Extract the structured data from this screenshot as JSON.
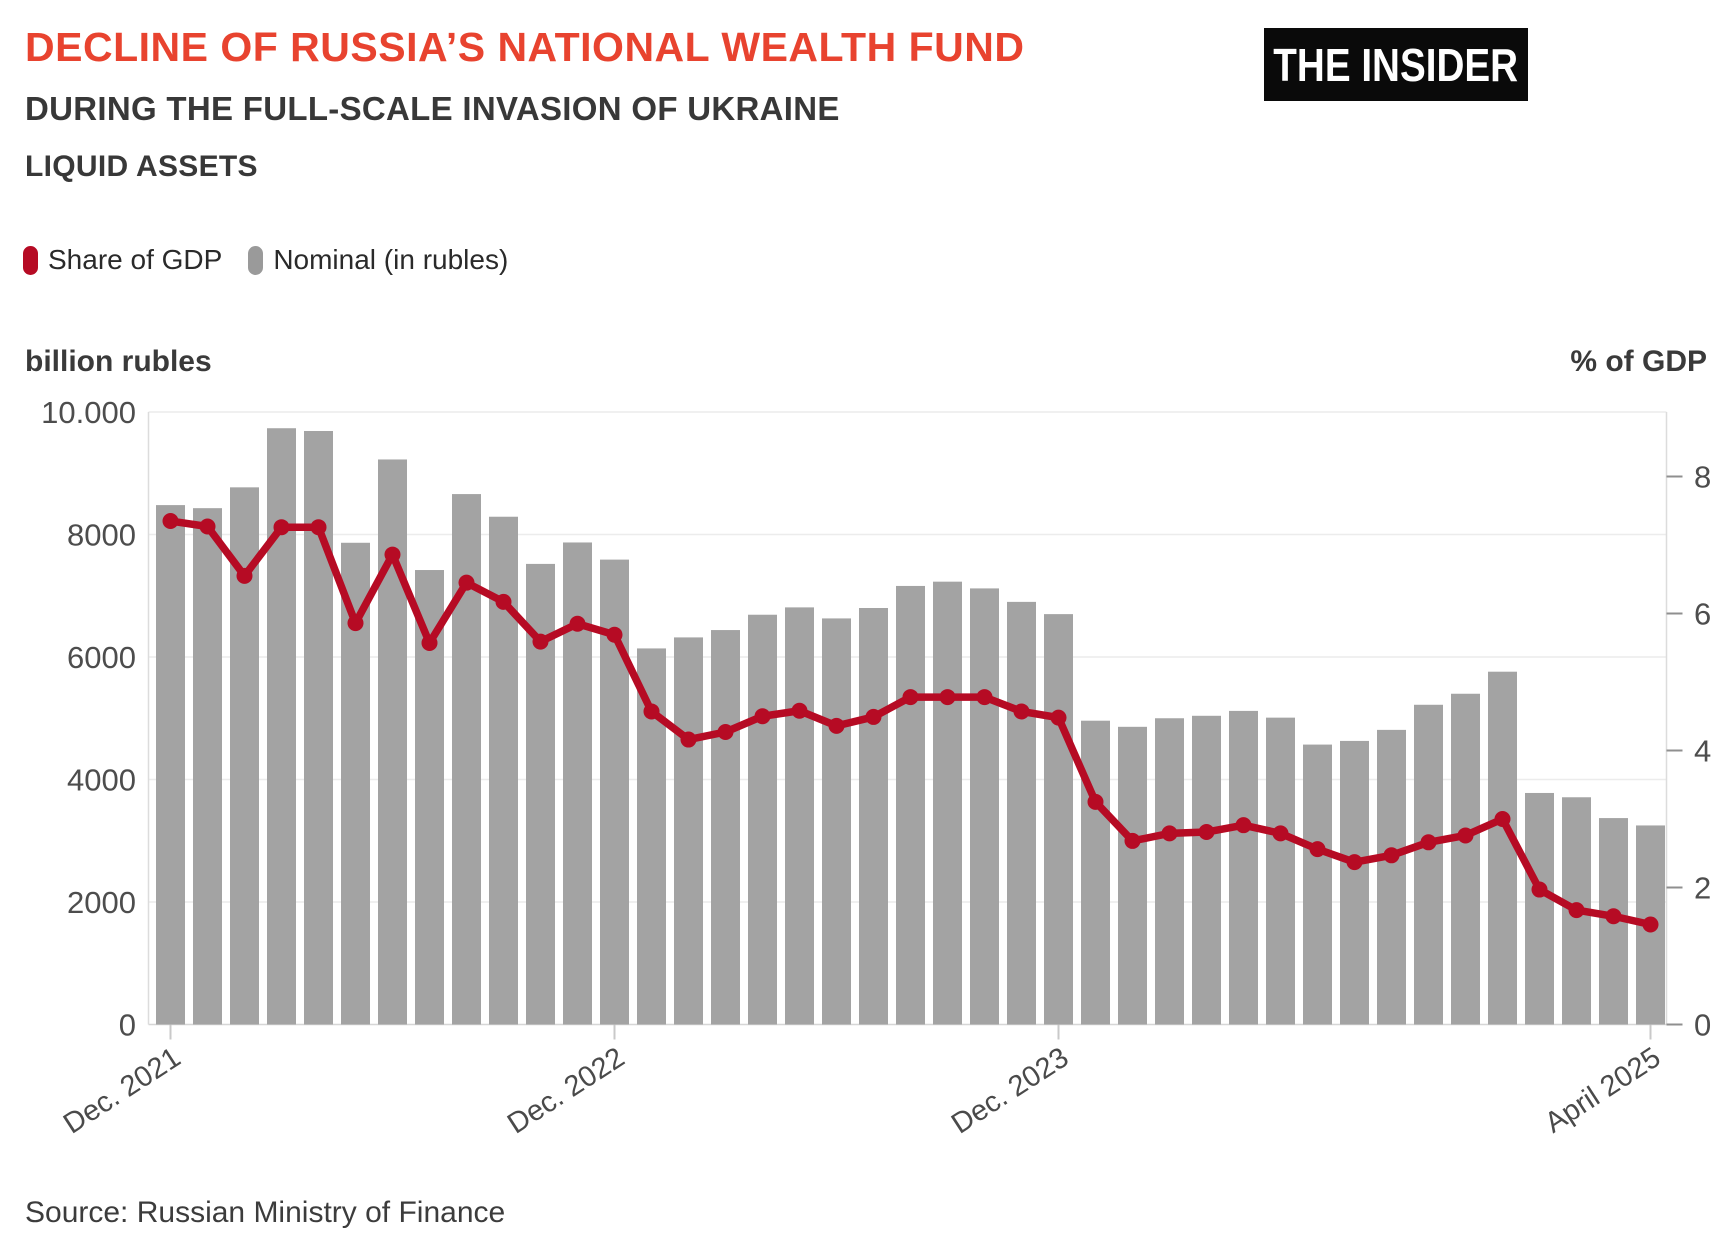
{
  "header": {
    "title": "DECLINE OF RUSSIA’S NATIONAL WEALTH FUND",
    "subtitle": "DURING THE FULL-SCALE INVASION OF UKRAINE",
    "subtitle2": "LIQUID ASSETS",
    "logo": "THE INSIDER"
  },
  "legend": [
    {
      "label": "Share of GDP",
      "color": "#b60b24"
    },
    {
      "label": "Nominal (in rubles)",
      "color": "#9a9a9a"
    }
  ],
  "axes": {
    "left_title": "billion rubles",
    "right_title": "% of GDP",
    "left_ticks": [
      {
        "label": "10.000",
        "value": 10000
      },
      {
        "label": "8000",
        "value": 8000
      },
      {
        "label": "6000",
        "value": 6000
      },
      {
        "label": "4000",
        "value": 4000
      },
      {
        "label": "2000",
        "value": 2000
      },
      {
        "label": "0",
        "value": 0
      }
    ],
    "right_ticks": [
      {
        "label": "8",
        "value": 8
      },
      {
        "label": "6",
        "value": 6
      },
      {
        "label": "4",
        "value": 4
      },
      {
        "label": "2",
        "value": 2
      },
      {
        "label": "0",
        "value": 0
      }
    ],
    "x_ticks": [
      {
        "label": "Dec. 2021",
        "index": 0
      },
      {
        "label": "Dec. 2022",
        "index": 12
      },
      {
        "label": "Dec. 2023",
        "index": 24
      },
      {
        "label": "April 2025",
        "index": 40
      }
    ]
  },
  "source": "Source: Russian Ministry of Finance",
  "chart_data": {
    "type": "bar+line",
    "title": "Decline of Russia's National Wealth Fund — liquid assets",
    "categories": [
      "Dec. 2021",
      "Jan. 2022",
      "Feb. 2022",
      "Mar. 2022",
      "Apr. 2022",
      "May 2022",
      "Jun. 2022",
      "Jul. 2022",
      "Aug. 2022",
      "Sep. 2022",
      "Oct. 2022",
      "Nov. 2022",
      "Dec. 2022",
      "Jan. 2023",
      "Feb. 2023",
      "Mar. 2023",
      "Apr. 2023",
      "May 2023",
      "Jun. 2023",
      "Jul. 2023",
      "Aug. 2023",
      "Sep. 2023",
      "Oct. 2023",
      "Nov. 2023",
      "Dec. 2023",
      "Jan. 2024",
      "Feb. 2024",
      "Mar. 2024",
      "Apr. 2024",
      "May 2024",
      "Jun. 2024",
      "Jul. 2024",
      "Aug. 2024",
      "Sep. 2024",
      "Oct. 2024",
      "Nov. 2024",
      "Dec. 2024",
      "Jan. 2025",
      "Feb. 2025",
      "Mar. 2025",
      "April 2025"
    ],
    "series": [
      {
        "name": "Nominal (in rubles)",
        "type": "bar",
        "axis": "left",
        "unit": "billion rubles",
        "color": "#a3a3a3",
        "values": [
          8480,
          8430,
          8770,
          9735,
          9690,
          7865,
          9225,
          7420,
          8660,
          8290,
          7520,
          7870,
          7590,
          6140,
          6320,
          6440,
          6690,
          6810,
          6630,
          6800,
          7160,
          7230,
          7120,
          6900,
          6700,
          4960,
          4860,
          5000,
          5040,
          5120,
          5010,
          4570,
          4630,
          4810,
          5220,
          5400,
          5760,
          3780,
          3710,
          3370,
          3250
        ]
      },
      {
        "name": "Share of GDP",
        "type": "line",
        "axis": "right",
        "unit": "% of GDP",
        "color": "#b60b24",
        "values": [
          7.35,
          7.27,
          6.55,
          7.26,
          7.26,
          5.86,
          6.86,
          5.57,
          6.45,
          6.17,
          5.59,
          5.85,
          5.69,
          4.57,
          4.16,
          4.27,
          4.5,
          4.58,
          4.36,
          4.49,
          4.78,
          4.78,
          4.78,
          4.57,
          4.48,
          3.25,
          2.68,
          2.79,
          2.81,
          2.91,
          2.79,
          2.56,
          2.37,
          2.47,
          2.66,
          2.76,
          3.0,
          1.97,
          1.67,
          1.58,
          1.46
        ]
      }
    ],
    "left_axis_range": [
      0,
      10000
    ],
    "right_axis_range": [
      0,
      8.9
    ],
    "grid": "horizontal",
    "legend_position": "top-left"
  }
}
